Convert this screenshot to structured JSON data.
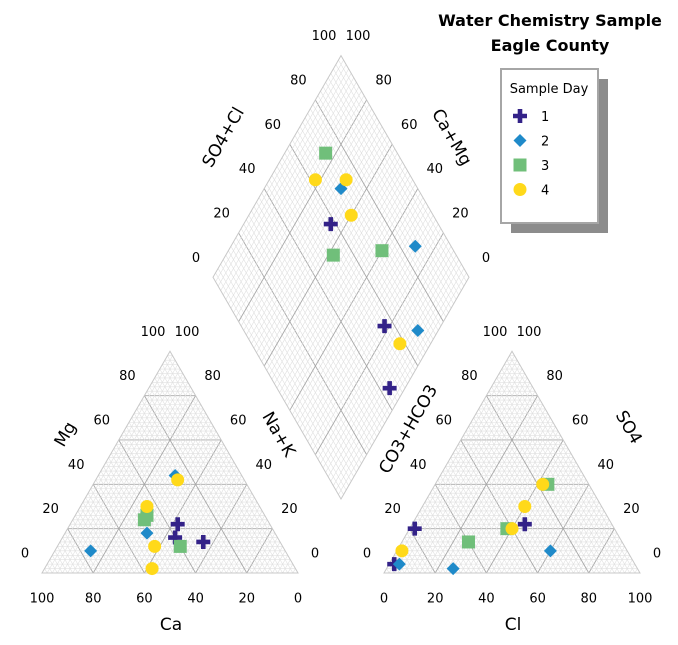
{
  "title": [
    "Water Chemistry Sample",
    "Eagle County"
  ],
  "legend": {
    "title": "Sample Day",
    "items": [
      {
        "label": "1",
        "marker": "cross",
        "color": "#332288"
      },
      {
        "label": "2",
        "marker": "diamond",
        "color": "#1f8ac9"
      },
      {
        "label": "3",
        "marker": "square",
        "color": "#70bf7a"
      },
      {
        "label": "4",
        "marker": "circle",
        "color": "#ffd91a"
      }
    ]
  },
  "axes": {
    "cation_left": "Mg",
    "cation_bottom": "Ca",
    "cation_right": "Na+K",
    "anion_bottom": "Cl",
    "anion_right": "SO4",
    "anion_left": "CO3+HCO3",
    "diamond_upper_left": "SO4+Cl",
    "diamond_upper_right": "Ca+Mg"
  },
  "tick_labels": {
    "cation_bottom": [
      "100",
      "80",
      "60",
      "40",
      "20",
      "0"
    ],
    "cation_left": [
      "0",
      "20",
      "40",
      "60",
      "80",
      "100"
    ],
    "cation_right": [
      "100",
      "80",
      "60",
      "40",
      "20",
      "0"
    ],
    "anion_bottom": [
      "0",
      "20",
      "40",
      "60",
      "80",
      "100"
    ],
    "anion_left": [
      "100",
      "80",
      "60",
      "40",
      "20",
      "0"
    ],
    "anion_right": [
      "0",
      "20",
      "40",
      "60",
      "80",
      "100"
    ],
    "diamond_ul": [
      "0",
      "20",
      "40",
      "60",
      "80",
      "100"
    ],
    "diamond_ur": [
      "0",
      "20",
      "40",
      "60",
      "80",
      "100"
    ]
  },
  "chart_data": {
    "type": "scatter",
    "subtype": "piper-diagram",
    "units": "percent of total meq/L",
    "series": [
      {
        "name": "1",
        "marker": "cross",
        "color": "#332288",
        "samples": [
          {
            "Ca": 36,
            "Mg": 22,
            "Cl": 44,
            "SO4": 22
          },
          {
            "Ca": 40,
            "Mg": 16,
            "Cl": 2,
            "SO4": 20
          },
          {
            "Ca": 30,
            "Mg": 14,
            "Cl": 2,
            "SO4": 4
          }
        ]
      },
      {
        "name": "2",
        "marker": "diamond",
        "color": "#1f8ac9",
        "samples": [
          {
            "Ca": 26,
            "Mg": 44,
            "Cl": 60,
            "SO4": 10
          },
          {
            "Ca": 50,
            "Mg": 18,
            "Cl": 4,
            "SO4": 4
          },
          {
            "Ca": 76,
            "Mg": 10,
            "Cl": 26,
            "SO4": 2
          }
        ]
      },
      {
        "name": "3",
        "marker": "square",
        "color": "#70bf7a",
        "samples": [
          {
            "Ca": 46,
            "Mg": 26,
            "Cl": 44,
            "SO4": 40
          },
          {
            "Ca": 48,
            "Mg": 24,
            "Cl": 26,
            "SO4": 14
          },
          {
            "Ca": 40,
            "Mg": 12,
            "Cl": 38,
            "SO4": 20
          }
        ]
      },
      {
        "name": "4",
        "marker": "circle",
        "color": "#ffd91a",
        "samples": [
          {
            "Ca": 44,
            "Mg": 30,
            "Cl": 40,
            "SO4": 30
          },
          {
            "Ca": 26,
            "Mg": 42,
            "Cl": 40,
            "SO4": 20
          },
          {
            "Ca": 50,
            "Mg": 12,
            "Cl": 42,
            "SO4": 40
          },
          {
            "Ca": 56,
            "Mg": 2,
            "Cl": 2,
            "SO4": 10
          }
        ]
      }
    ]
  }
}
